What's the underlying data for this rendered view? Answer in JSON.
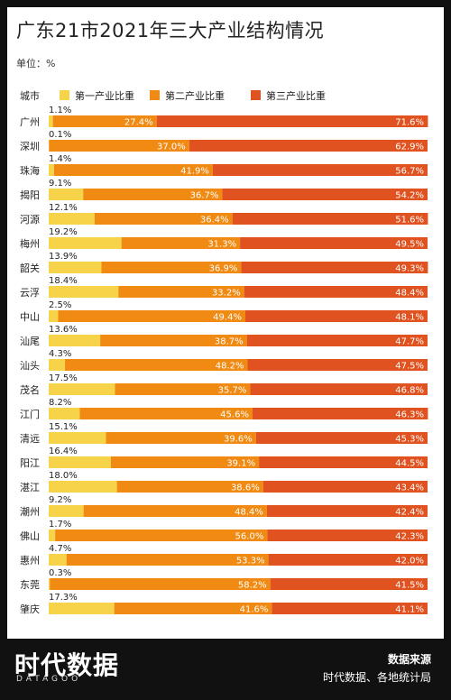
{
  "title": "广东21市2021年三大产业结构情况",
  "unit_label": "单位：%",
  "header": {
    "city_label": "城市"
  },
  "legend": [
    {
      "name": "第一产业比重",
      "color": "#F7D34A"
    },
    {
      "name": "第二产业比重",
      "color": "#F08A12"
    },
    {
      "name": "第三产业比重",
      "color": "#E0521F"
    }
  ],
  "footer": {
    "logo_text": "时代数据",
    "logo_sub": "DATAGOO",
    "source_title": "数据来源",
    "source_text": "时代数据、各地统计局"
  },
  "chart_data": {
    "type": "bar",
    "orientation": "horizontal",
    "stacked": true,
    "xlim": [
      0,
      100
    ],
    "grid": false,
    "legend_position": "top",
    "categories": [
      "广州",
      "深圳",
      "珠海",
      "揭阳",
      "河源",
      "梅州",
      "韶关",
      "云浮",
      "中山",
      "汕尾",
      "汕头",
      "茂名",
      "江门",
      "清远",
      "阳江",
      "湛江",
      "潮州",
      "佛山",
      "惠州",
      "东莞",
      "肇庆"
    ],
    "series": [
      {
        "name": "第一产业比重",
        "color": "#F7D34A",
        "values": [
          1.1,
          0.1,
          1.4,
          9.1,
          12.1,
          19.2,
          13.9,
          18.4,
          2.5,
          13.6,
          4.3,
          17.5,
          8.2,
          15.1,
          16.4,
          18.0,
          9.2,
          1.7,
          4.7,
          0.3,
          17.3
        ]
      },
      {
        "name": "第二产业比重",
        "color": "#F08A12",
        "values": [
          27.4,
          37.0,
          41.9,
          36.7,
          36.4,
          31.3,
          36.9,
          33.2,
          49.4,
          38.7,
          48.2,
          35.7,
          45.6,
          39.6,
          39.1,
          38.6,
          48.4,
          56.0,
          53.3,
          58.2,
          41.6
        ]
      },
      {
        "name": "第三产业比重",
        "color": "#E0521F",
        "values": [
          71.6,
          62.9,
          56.7,
          54.2,
          51.6,
          49.5,
          49.3,
          48.4,
          48.1,
          47.7,
          47.5,
          46.8,
          46.3,
          45.3,
          44.5,
          43.4,
          42.4,
          42.3,
          42.0,
          41.5,
          41.1
        ]
      }
    ]
  }
}
